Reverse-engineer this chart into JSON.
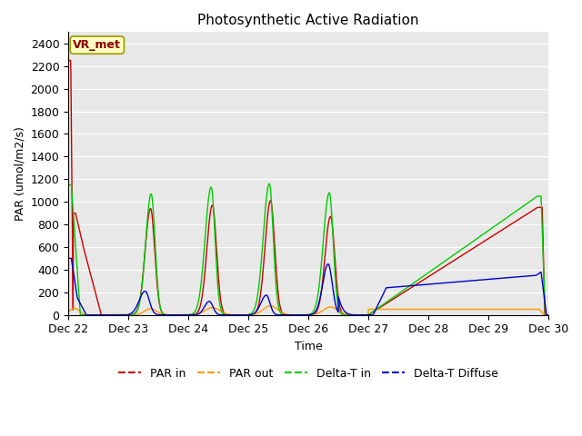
{
  "title": "Photosynthetic Active Radiation",
  "ylabel": "PAR (umol/m2/s)",
  "xlabel": "Time",
  "annotation_text": "VR_met",
  "ylim": [
    0,
    2500
  ],
  "yticks": [
    0,
    200,
    400,
    600,
    800,
    1000,
    1200,
    1400,
    1600,
    1800,
    2000,
    2200,
    2400
  ],
  "background_color": "#e8e8e8",
  "colors": {
    "PAR_in": "#cc0000",
    "PAR_out": "#ff9900",
    "Delta_T_in": "#00cc00",
    "Delta_T_Diffuse": "#0000cc"
  },
  "legend": [
    "PAR in",
    "PAR out",
    "Delta-T in",
    "Delta-T Diffuse"
  ],
  "x_tick_labels": [
    "Dec 22",
    "Dec 23",
    "Dec 24",
    "Dec 25",
    "Dec 26",
    "Dec 27",
    "Dec 28",
    "Dec 29",
    "Dec 30"
  ],
  "xlim": [
    0,
    8
  ],
  "title_fontsize": 11,
  "axis_fontsize": 9
}
